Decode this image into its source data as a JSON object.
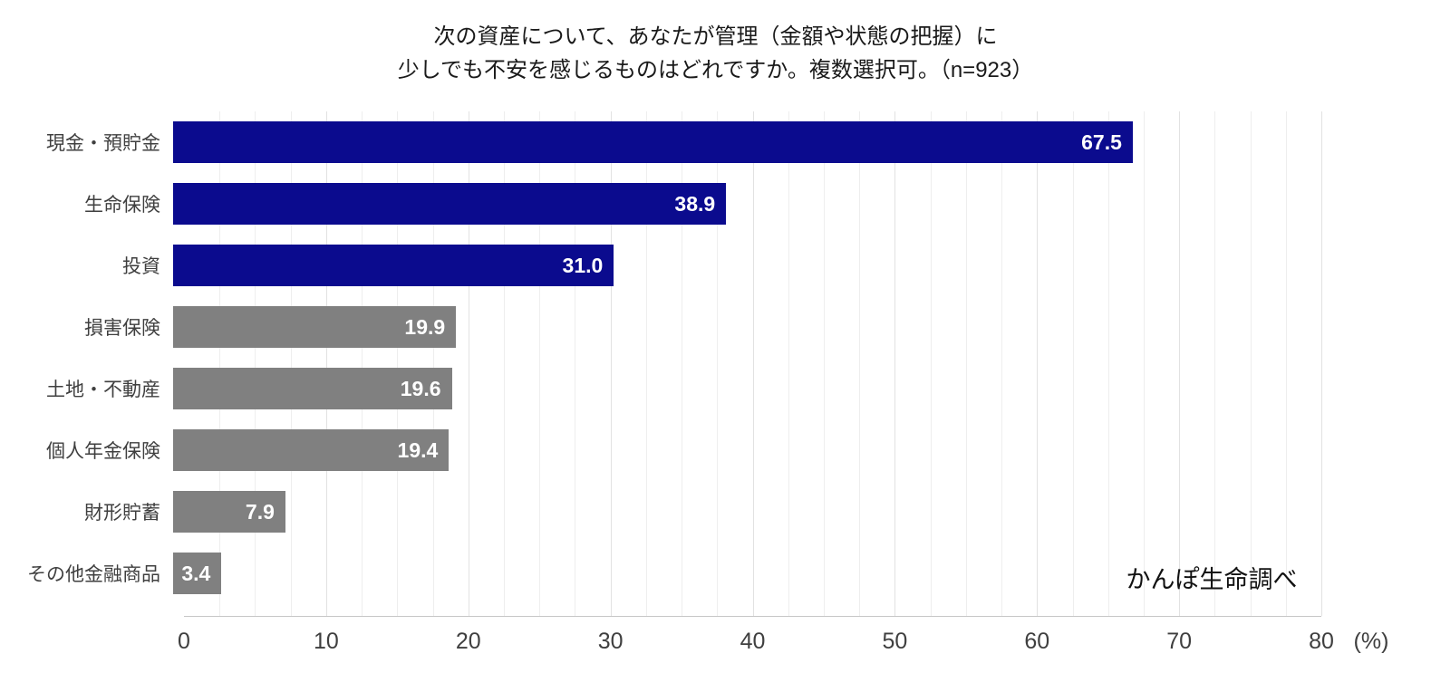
{
  "title": {
    "line1": "次の資産について、あなたが管理（金額や状態の把握）に",
    "line2": "少しでも不安を感じるものはどれですか。複数選択可。（n=923）"
  },
  "annotation": "かんぽ生命調べ",
  "colors": {
    "navy": "#0b0b8e",
    "gray": "#808080",
    "grid_minor": "#eeeeee",
    "grid_major": "#e2e2e2",
    "value_label": "#ffffff"
  },
  "chart_data": {
    "type": "bar",
    "orientation": "horizontal",
    "title": "次の資産について、あなたが管理（金額や状態の把握）に少しでも不安を感じるものはどれですか。複数選択可。（n=923）",
    "categories": [
      "現金・預貯金",
      "生命保険",
      "投資",
      "損害保険",
      "土地・不動産",
      "個人年金保険",
      "財形貯蓄",
      "その他金融商品"
    ],
    "values": [
      67.5,
      38.9,
      31.0,
      19.9,
      19.6,
      19.4,
      7.9,
      3.4
    ],
    "value_labels": [
      "67.5",
      "38.9",
      "31.0",
      "19.9",
      "19.6",
      "19.4",
      "7.9",
      "3.4"
    ],
    "bar_colors": [
      "#0b0b8e",
      "#0b0b8e",
      "#0b0b8e",
      "#808080",
      "#808080",
      "#808080",
      "#808080",
      "#808080"
    ],
    "xlabel": "(%)",
    "ylabel": "",
    "xlim": [
      0,
      80
    ],
    "x_ticks": [
      0,
      10,
      20,
      30,
      40,
      50,
      60,
      70,
      80
    ],
    "minor_grid_step": 2.5,
    "grid": "vertical-only",
    "legend_position": "none",
    "source_note": "かんぽ生命調べ"
  }
}
